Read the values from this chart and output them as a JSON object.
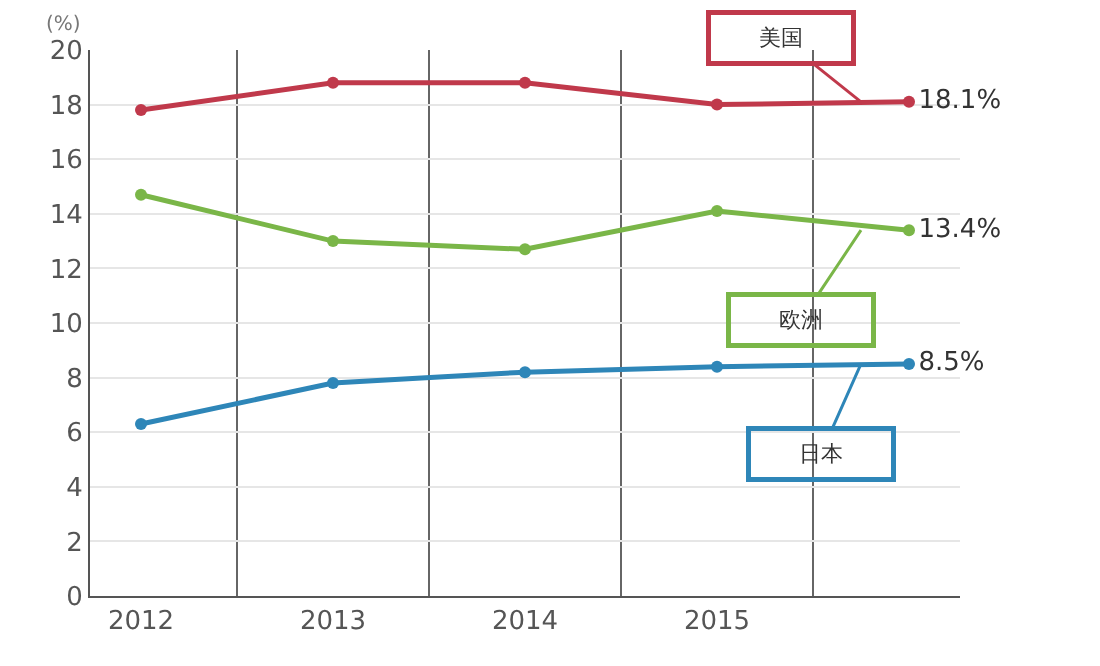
{
  "chart_data": {
    "type": "line",
    "ylabel": "(%)",
    "categories": [
      "2012",
      "2013",
      "2014",
      "2015",
      null
    ],
    "series": [
      {
        "name": "美国",
        "color": "#c0394b",
        "values": [
          17.8,
          18.8,
          18.8,
          18.0,
          18.1
        ],
        "value_labels": [
          null,
          null,
          null,
          null,
          "18.1%"
        ]
      },
      {
        "name": "欧洲",
        "color": "#7ab648",
        "values": [
          14.7,
          13.0,
          12.7,
          14.1,
          13.4
        ],
        "value_labels": [
          null,
          null,
          null,
          null,
          "13.4%"
        ]
      },
      {
        "name": "日本",
        "color": "#2e86b8",
        "values": [
          6.3,
          7.8,
          8.2,
          8.4,
          8.5
        ],
        "value_labels": [
          null,
          null,
          null,
          null,
          "8.5%"
        ]
      }
    ],
    "ylim": [
      0,
      20
    ],
    "yticks": [
      0,
      2,
      4,
      6,
      8,
      10,
      12,
      14,
      16,
      18,
      20
    ],
    "grid": true,
    "legend": false,
    "marker": "circle",
    "line_style": "solid"
  }
}
